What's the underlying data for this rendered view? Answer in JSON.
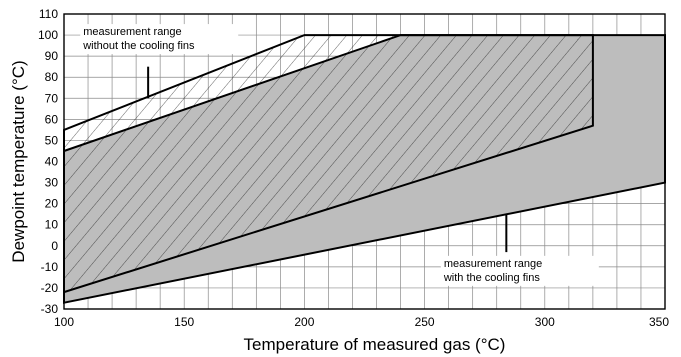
{
  "chart_data": {
    "type": "area",
    "title": "",
    "xlabel": "Temperature of measured gas (°C)",
    "ylabel": "Dewpoint temperature (°C)",
    "xlim": [
      100,
      350
    ],
    "ylim": [
      -30,
      110
    ],
    "x_ticks": [
      100,
      150,
      200,
      250,
      300,
      350
    ],
    "y_ticks": [
      -30,
      -20,
      -10,
      0,
      10,
      20,
      30,
      40,
      50,
      60,
      70,
      80,
      90,
      100,
      110
    ],
    "x_minor_step": 10,
    "grid": true,
    "colors": {
      "with_fins_fill": "#bdbdbd",
      "line": "#000000",
      "grid": "#8a8a8a",
      "background": "#ffffff"
    },
    "series": [
      {
        "name": "measurement range without the cooling fins",
        "fill": "hatched",
        "points": [
          [
            100,
            55
          ],
          [
            200,
            100
          ],
          [
            320,
            100
          ],
          [
            320,
            57
          ],
          [
            100,
            -22
          ]
        ]
      },
      {
        "name": "measurement range with the cooling fins",
        "fill": "grey",
        "points": [
          [
            100,
            45
          ],
          [
            240,
            100
          ],
          [
            350,
            100
          ],
          [
            350,
            30
          ],
          [
            100,
            -27
          ]
        ]
      }
    ],
    "annotations": [
      {
        "id": "without_fins",
        "lines": [
          "measurement range",
          "without the cooling fins"
        ],
        "text_at": [
          108,
          100
        ],
        "leader": [
          [
            135,
            85
          ],
          [
            135,
            70
          ]
        ]
      },
      {
        "id": "with_fins",
        "lines": [
          "measurement range",
          "with the cooling fins"
        ],
        "text_at": [
          258,
          -10
        ],
        "leader": [
          [
            284,
            15
          ],
          [
            284,
            -3
          ]
        ]
      }
    ]
  }
}
